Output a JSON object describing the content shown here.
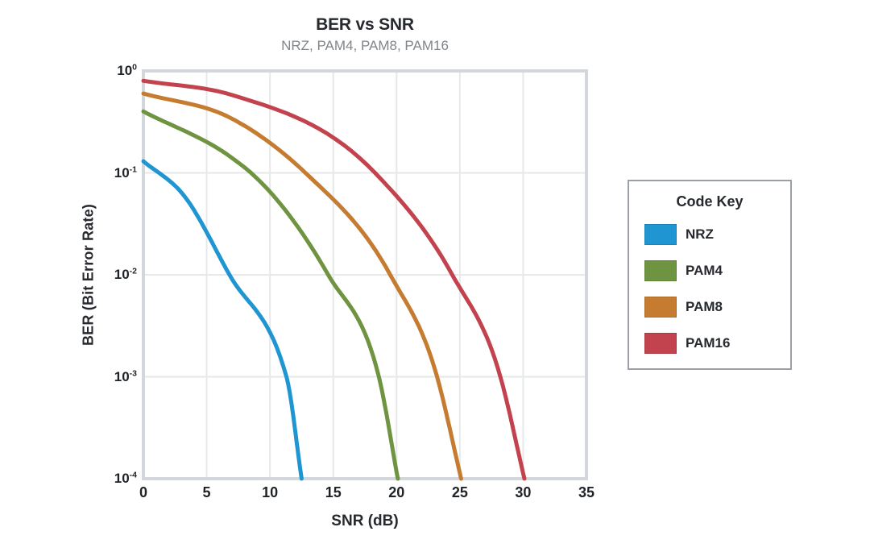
{
  "chart": {
    "title": "BER vs SNR",
    "subtitle": "NRZ, PAM4, PAM8, PAM16",
    "x_axis": {
      "title": "SNR (dB)",
      "ticks": [
        0,
        5,
        10,
        15,
        20,
        25,
        30,
        35
      ]
    },
    "y_axis": {
      "title": "BER (Bit Error Rate)",
      "tick_exponents": [
        0,
        -1,
        -2,
        -3,
        -4
      ],
      "scale": "log"
    }
  },
  "legend": {
    "title": "Code Key",
    "items": [
      {
        "label": "NRZ",
        "color": "#1f96d2"
      },
      {
        "label": "PAM4",
        "color": "#6f9441"
      },
      {
        "label": "PAM8",
        "color": "#c57b30"
      },
      {
        "label": "PAM16",
        "color": "#c2424e"
      }
    ]
  },
  "chart_data": {
    "type": "line",
    "title": "BER vs SNR",
    "subtitle": "NRZ, PAM4, PAM8, PAM16",
    "xlabel": "SNR (dB)",
    "ylabel": "BER (Bit Error Rate)",
    "xlim": [
      0,
      35
    ],
    "ylim": [
      0.0001,
      1
    ],
    "yscale": "log",
    "grid": true,
    "legend_position": "right",
    "legend_title": "Code Key",
    "series": [
      {
        "name": "NRZ",
        "color": "#1f96d2",
        "points": [
          [
            0,
            0.13
          ],
          [
            3.2,
            0.06
          ],
          [
            6.8,
            0.01
          ],
          [
            11.3,
            0.001
          ],
          [
            12.5,
            0.0001
          ]
        ]
      },
      {
        "name": "PAM4",
        "color": "#6f9441",
        "points": [
          [
            0,
            0.4
          ],
          [
            7,
            0.14
          ],
          [
            8.5,
            0.1
          ],
          [
            14.6,
            0.01
          ],
          [
            18.6,
            0.001
          ],
          [
            20.1,
            0.0001
          ]
        ]
      },
      {
        "name": "PAM8",
        "color": "#c57b30",
        "points": [
          [
            0,
            0.6
          ],
          [
            7,
            0.34
          ],
          [
            12.8,
            0.1
          ],
          [
            19.5,
            0.01
          ],
          [
            23.2,
            0.001
          ],
          [
            25.1,
            0.0001
          ]
        ]
      },
      {
        "name": "PAM16",
        "color": "#c2424e",
        "points": [
          [
            0,
            0.8
          ],
          [
            7,
            0.58
          ],
          [
            18.3,
            0.1
          ],
          [
            24.4,
            0.01
          ],
          [
            28.2,
            0.001
          ],
          [
            30.1,
            0.0001
          ]
        ]
      }
    ]
  }
}
